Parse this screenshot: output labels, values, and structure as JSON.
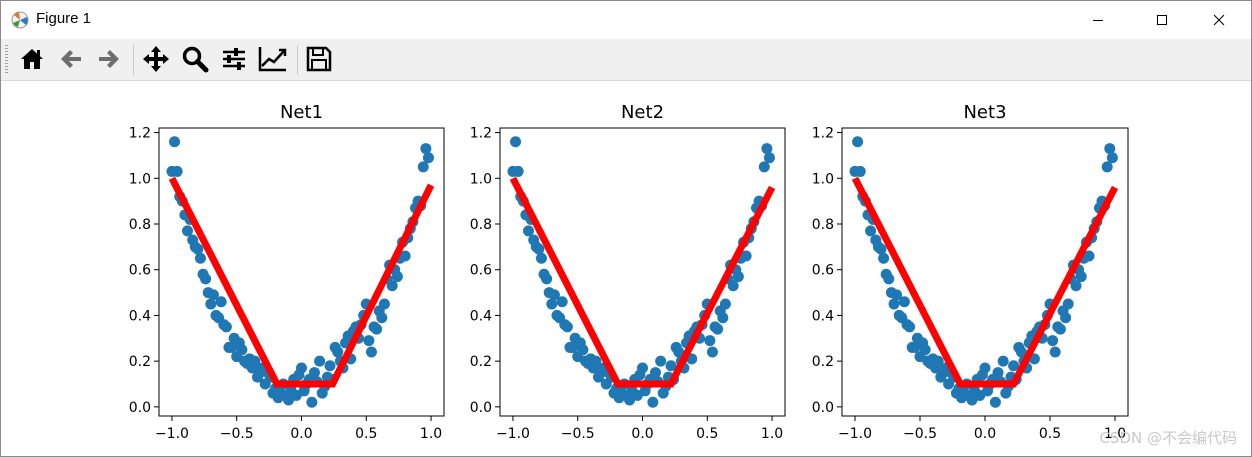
{
  "window": {
    "title": "Figure 1",
    "controls": {
      "minimize_icon": "minimize-icon",
      "maximize_icon": "maximize-icon",
      "close_icon": "close-icon"
    }
  },
  "toolbar": {
    "buttons": [
      "home",
      "back",
      "forward",
      "pan",
      "zoom",
      "configure-subplots",
      "edit-axis",
      "save"
    ]
  },
  "watermark": "CSDN @不会编代码",
  "colors": {
    "scatter": "#1f77b4",
    "line": "#ff0000",
    "axes": "#000000"
  },
  "chart_data": [
    {
      "type": "scatter",
      "title": "Net1",
      "xlim": [
        -1.1,
        1.1
      ],
      "ylim": [
        -0.04,
        1.22
      ],
      "xticks": [
        -1.0,
        -0.5,
        0.0,
        0.5,
        1.0
      ],
      "xtick_labels": [
        "−1.0",
        "−0.5",
        "0.0",
        "0.5",
        "1.0"
      ],
      "yticks": [
        0.0,
        0.2,
        0.4,
        0.6,
        0.8,
        1.0,
        1.2
      ],
      "ytick_labels": [
        "0.0",
        "0.2",
        "0.4",
        "0.6",
        "0.8",
        "1.0",
        "1.2"
      ],
      "points": [
        [
          -1.0,
          1.03
        ],
        [
          -0.98,
          1.16
        ],
        [
          -0.96,
          1.03
        ],
        [
          -0.94,
          0.92
        ],
        [
          -0.92,
          0.9
        ],
        [
          -0.9,
          0.84
        ],
        [
          -0.88,
          0.77
        ],
        [
          -0.86,
          0.82
        ],
        [
          -0.84,
          0.73
        ],
        [
          -0.82,
          0.7
        ],
        [
          -0.8,
          0.69
        ],
        [
          -0.78,
          0.65
        ],
        [
          -0.76,
          0.58
        ],
        [
          -0.74,
          0.56
        ],
        [
          -0.72,
          0.5
        ],
        [
          -0.7,
          0.45
        ],
        [
          -0.68,
          0.49
        ],
        [
          -0.66,
          0.4
        ],
        [
          -0.64,
          0.39
        ],
        [
          -0.62,
          0.46
        ],
        [
          -0.6,
          0.36
        ],
        [
          -0.58,
          0.35
        ],
        [
          -0.56,
          0.26
        ],
        [
          -0.54,
          0.26
        ],
        [
          -0.52,
          0.3
        ],
        [
          -0.5,
          0.22
        ],
        [
          -0.48,
          0.28
        ],
        [
          -0.46,
          0.25
        ],
        [
          -0.44,
          0.2
        ],
        [
          -0.42,
          0.19
        ],
        [
          -0.4,
          0.21
        ],
        [
          -0.38,
          0.17
        ],
        [
          -0.36,
          0.2
        ],
        [
          -0.34,
          0.13
        ],
        [
          -0.32,
          0.15
        ],
        [
          -0.3,
          0.17
        ],
        [
          -0.28,
          0.1
        ],
        [
          -0.26,
          0.15
        ],
        [
          -0.24,
          0.13
        ],
        [
          -0.22,
          0.06
        ],
        [
          -0.2,
          0.08
        ],
        [
          -0.18,
          0.04
        ],
        [
          -0.16,
          0.06
        ],
        [
          -0.14,
          0.1
        ],
        [
          -0.12,
          0.05
        ],
        [
          -0.1,
          0.03
        ],
        [
          -0.08,
          0.07
        ],
        [
          -0.06,
          0.12
        ],
        [
          -0.04,
          0.05
        ],
        [
          -0.02,
          0.14
        ],
        [
          0.0,
          0.17
        ],
        [
          0.02,
          0.07
        ],
        [
          0.04,
          0.1
        ],
        [
          0.06,
          0.12
        ],
        [
          0.08,
          0.02
        ],
        [
          0.1,
          0.15
        ],
        [
          0.12,
          0.11
        ],
        [
          0.14,
          0.2
        ],
        [
          0.16,
          0.06
        ],
        [
          0.18,
          0.09
        ],
        [
          0.2,
          0.13
        ],
        [
          0.22,
          0.18
        ],
        [
          0.24,
          0.12
        ],
        [
          0.26,
          0.26
        ],
        [
          0.28,
          0.24
        ],
        [
          0.3,
          0.2
        ],
        [
          0.32,
          0.17
        ],
        [
          0.34,
          0.28
        ],
        [
          0.36,
          0.31
        ],
        [
          0.38,
          0.21
        ],
        [
          0.4,
          0.33
        ],
        [
          0.42,
          0.35
        ],
        [
          0.44,
          0.3
        ],
        [
          0.46,
          0.36
        ],
        [
          0.48,
          0.4
        ],
        [
          0.5,
          0.45
        ],
        [
          0.52,
          0.29
        ],
        [
          0.54,
          0.24
        ],
        [
          0.56,
          0.35
        ],
        [
          0.58,
          0.34
        ],
        [
          0.6,
          0.42
        ],
        [
          0.62,
          0.39
        ],
        [
          0.64,
          0.45
        ],
        [
          0.66,
          0.56
        ],
        [
          0.68,
          0.62
        ],
        [
          0.7,
          0.53
        ],
        [
          0.72,
          0.6
        ],
        [
          0.74,
          0.57
        ],
        [
          0.76,
          0.65
        ],
        [
          0.78,
          0.72
        ],
        [
          0.8,
          0.66
        ],
        [
          0.82,
          0.74
        ],
        [
          0.84,
          0.78
        ],
        [
          0.86,
          0.81
        ],
        [
          0.88,
          0.87
        ],
        [
          0.9,
          0.9
        ],
        [
          0.92,
          0.88
        ],
        [
          0.94,
          1.05
        ],
        [
          0.96,
          1.13
        ],
        [
          0.98,
          1.09
        ]
      ],
      "line": {
        "x": [
          -1.0,
          -0.19,
          0.24,
          1.0
        ],
        "y": [
          1.0,
          0.1,
          0.1,
          0.97
        ]
      }
    },
    {
      "type": "scatter",
      "title": "Net2",
      "xlim": [
        -1.1,
        1.1
      ],
      "ylim": [
        -0.04,
        1.22
      ],
      "xticks": [
        -1.0,
        -0.5,
        0.0,
        0.5,
        1.0
      ],
      "xtick_labels": [
        "−1.0",
        "−0.5",
        "0.0",
        "0.5",
        "1.0"
      ],
      "yticks": [
        0.0,
        0.2,
        0.4,
        0.6,
        0.8,
        1.0,
        1.2
      ],
      "ytick_labels": [
        "0.0",
        "0.2",
        "0.4",
        "0.6",
        "0.8",
        "1.0",
        "1.2"
      ],
      "points": [
        [
          -1.0,
          1.03
        ],
        [
          -0.98,
          1.16
        ],
        [
          -0.96,
          1.03
        ],
        [
          -0.94,
          0.92
        ],
        [
          -0.92,
          0.9
        ],
        [
          -0.9,
          0.84
        ],
        [
          -0.88,
          0.77
        ],
        [
          -0.86,
          0.82
        ],
        [
          -0.84,
          0.73
        ],
        [
          -0.82,
          0.7
        ],
        [
          -0.8,
          0.69
        ],
        [
          -0.78,
          0.65
        ],
        [
          -0.76,
          0.58
        ],
        [
          -0.74,
          0.56
        ],
        [
          -0.72,
          0.5
        ],
        [
          -0.7,
          0.45
        ],
        [
          -0.68,
          0.49
        ],
        [
          -0.66,
          0.4
        ],
        [
          -0.64,
          0.39
        ],
        [
          -0.62,
          0.46
        ],
        [
          -0.6,
          0.36
        ],
        [
          -0.58,
          0.35
        ],
        [
          -0.56,
          0.26
        ],
        [
          -0.54,
          0.26
        ],
        [
          -0.52,
          0.3
        ],
        [
          -0.5,
          0.22
        ],
        [
          -0.48,
          0.28
        ],
        [
          -0.46,
          0.25
        ],
        [
          -0.44,
          0.2
        ],
        [
          -0.42,
          0.19
        ],
        [
          -0.4,
          0.21
        ],
        [
          -0.38,
          0.17
        ],
        [
          -0.36,
          0.2
        ],
        [
          -0.34,
          0.13
        ],
        [
          -0.32,
          0.15
        ],
        [
          -0.3,
          0.17
        ],
        [
          -0.28,
          0.1
        ],
        [
          -0.26,
          0.15
        ],
        [
          -0.24,
          0.13
        ],
        [
          -0.22,
          0.06
        ],
        [
          -0.2,
          0.08
        ],
        [
          -0.18,
          0.04
        ],
        [
          -0.16,
          0.06
        ],
        [
          -0.14,
          0.1
        ],
        [
          -0.12,
          0.05
        ],
        [
          -0.1,
          0.03
        ],
        [
          -0.08,
          0.07
        ],
        [
          -0.06,
          0.12
        ],
        [
          -0.04,
          0.05
        ],
        [
          -0.02,
          0.14
        ],
        [
          0.0,
          0.17
        ],
        [
          0.02,
          0.07
        ],
        [
          0.04,
          0.1
        ],
        [
          0.06,
          0.12
        ],
        [
          0.08,
          0.02
        ],
        [
          0.1,
          0.15
        ],
        [
          0.12,
          0.11
        ],
        [
          0.14,
          0.2
        ],
        [
          0.16,
          0.06
        ],
        [
          0.18,
          0.09
        ],
        [
          0.2,
          0.13
        ],
        [
          0.22,
          0.18
        ],
        [
          0.24,
          0.12
        ],
        [
          0.26,
          0.26
        ],
        [
          0.28,
          0.24
        ],
        [
          0.3,
          0.2
        ],
        [
          0.32,
          0.17
        ],
        [
          0.34,
          0.28
        ],
        [
          0.36,
          0.31
        ],
        [
          0.38,
          0.21
        ],
        [
          0.4,
          0.33
        ],
        [
          0.42,
          0.35
        ],
        [
          0.44,
          0.3
        ],
        [
          0.46,
          0.36
        ],
        [
          0.48,
          0.4
        ],
        [
          0.5,
          0.45
        ],
        [
          0.52,
          0.29
        ],
        [
          0.54,
          0.24
        ],
        [
          0.56,
          0.35
        ],
        [
          0.58,
          0.34
        ],
        [
          0.6,
          0.42
        ],
        [
          0.62,
          0.39
        ],
        [
          0.64,
          0.45
        ],
        [
          0.66,
          0.56
        ],
        [
          0.68,
          0.62
        ],
        [
          0.7,
          0.53
        ],
        [
          0.72,
          0.6
        ],
        [
          0.74,
          0.57
        ],
        [
          0.76,
          0.65
        ],
        [
          0.78,
          0.72
        ],
        [
          0.8,
          0.66
        ],
        [
          0.82,
          0.74
        ],
        [
          0.84,
          0.78
        ],
        [
          0.86,
          0.81
        ],
        [
          0.88,
          0.87
        ],
        [
          0.9,
          0.9
        ],
        [
          0.92,
          0.88
        ],
        [
          0.94,
          1.05
        ],
        [
          0.96,
          1.13
        ],
        [
          0.98,
          1.09
        ]
      ],
      "line": {
        "x": [
          -1.0,
          -0.19,
          0.22,
          1.0
        ],
        "y": [
          1.0,
          0.1,
          0.1,
          0.96
        ]
      }
    },
    {
      "type": "scatter",
      "title": "Net3",
      "xlim": [
        -1.1,
        1.1
      ],
      "ylim": [
        -0.04,
        1.22
      ],
      "xticks": [
        -1.0,
        -0.5,
        0.0,
        0.5,
        1.0
      ],
      "xtick_labels": [
        "−1.0",
        "−0.5",
        "0.0",
        "0.5",
        "1.0"
      ],
      "yticks": [
        0.0,
        0.2,
        0.4,
        0.6,
        0.8,
        1.0,
        1.2
      ],
      "ytick_labels": [
        "0.0",
        "0.2",
        "0.4",
        "0.6",
        "0.8",
        "1.0",
        "1.2"
      ],
      "points": [
        [
          -1.0,
          1.03
        ],
        [
          -0.98,
          1.16
        ],
        [
          -0.96,
          1.03
        ],
        [
          -0.94,
          0.92
        ],
        [
          -0.92,
          0.9
        ],
        [
          -0.9,
          0.84
        ],
        [
          -0.88,
          0.77
        ],
        [
          -0.86,
          0.82
        ],
        [
          -0.84,
          0.73
        ],
        [
          -0.82,
          0.7
        ],
        [
          -0.8,
          0.69
        ],
        [
          -0.78,
          0.65
        ],
        [
          -0.76,
          0.58
        ],
        [
          -0.74,
          0.56
        ],
        [
          -0.72,
          0.5
        ],
        [
          -0.7,
          0.45
        ],
        [
          -0.68,
          0.49
        ],
        [
          -0.66,
          0.4
        ],
        [
          -0.64,
          0.39
        ],
        [
          -0.62,
          0.46
        ],
        [
          -0.6,
          0.36
        ],
        [
          -0.58,
          0.35
        ],
        [
          -0.56,
          0.26
        ],
        [
          -0.54,
          0.26
        ],
        [
          -0.52,
          0.3
        ],
        [
          -0.5,
          0.22
        ],
        [
          -0.48,
          0.28
        ],
        [
          -0.46,
          0.25
        ],
        [
          -0.44,
          0.2
        ],
        [
          -0.42,
          0.19
        ],
        [
          -0.4,
          0.21
        ],
        [
          -0.38,
          0.17
        ],
        [
          -0.36,
          0.2
        ],
        [
          -0.34,
          0.13
        ],
        [
          -0.32,
          0.15
        ],
        [
          -0.3,
          0.17
        ],
        [
          -0.28,
          0.1
        ],
        [
          -0.26,
          0.15
        ],
        [
          -0.24,
          0.13
        ],
        [
          -0.22,
          0.06
        ],
        [
          -0.2,
          0.08
        ],
        [
          -0.18,
          0.04
        ],
        [
          -0.16,
          0.06
        ],
        [
          -0.14,
          0.1
        ],
        [
          -0.12,
          0.05
        ],
        [
          -0.1,
          0.03
        ],
        [
          -0.08,
          0.07
        ],
        [
          -0.06,
          0.12
        ],
        [
          -0.04,
          0.05
        ],
        [
          -0.02,
          0.14
        ],
        [
          0.0,
          0.17
        ],
        [
          0.02,
          0.07
        ],
        [
          0.04,
          0.1
        ],
        [
          0.06,
          0.12
        ],
        [
          0.08,
          0.02
        ],
        [
          0.1,
          0.15
        ],
        [
          0.12,
          0.11
        ],
        [
          0.14,
          0.2
        ],
        [
          0.16,
          0.06
        ],
        [
          0.18,
          0.09
        ],
        [
          0.2,
          0.13
        ],
        [
          0.22,
          0.18
        ],
        [
          0.24,
          0.12
        ],
        [
          0.26,
          0.26
        ],
        [
          0.28,
          0.24
        ],
        [
          0.3,
          0.2
        ],
        [
          0.32,
          0.17
        ],
        [
          0.34,
          0.28
        ],
        [
          0.36,
          0.31
        ],
        [
          0.38,
          0.21
        ],
        [
          0.4,
          0.33
        ],
        [
          0.42,
          0.35
        ],
        [
          0.44,
          0.3
        ],
        [
          0.46,
          0.36
        ],
        [
          0.48,
          0.4
        ],
        [
          0.5,
          0.45
        ],
        [
          0.52,
          0.29
        ],
        [
          0.54,
          0.24
        ],
        [
          0.56,
          0.35
        ],
        [
          0.58,
          0.34
        ],
        [
          0.6,
          0.42
        ],
        [
          0.62,
          0.39
        ],
        [
          0.64,
          0.45
        ],
        [
          0.66,
          0.56
        ],
        [
          0.68,
          0.62
        ],
        [
          0.7,
          0.53
        ],
        [
          0.72,
          0.6
        ],
        [
          0.74,
          0.57
        ],
        [
          0.76,
          0.65
        ],
        [
          0.78,
          0.72
        ],
        [
          0.8,
          0.66
        ],
        [
          0.82,
          0.74
        ],
        [
          0.84,
          0.78
        ],
        [
          0.86,
          0.81
        ],
        [
          0.88,
          0.87
        ],
        [
          0.9,
          0.9
        ],
        [
          0.92,
          0.88
        ],
        [
          0.94,
          1.05
        ],
        [
          0.96,
          1.13
        ],
        [
          0.98,
          1.09
        ]
      ],
      "line": {
        "x": [
          -1.0,
          -0.19,
          0.22,
          1.0
        ],
        "y": [
          1.0,
          0.1,
          0.1,
          0.96
        ]
      }
    }
  ]
}
